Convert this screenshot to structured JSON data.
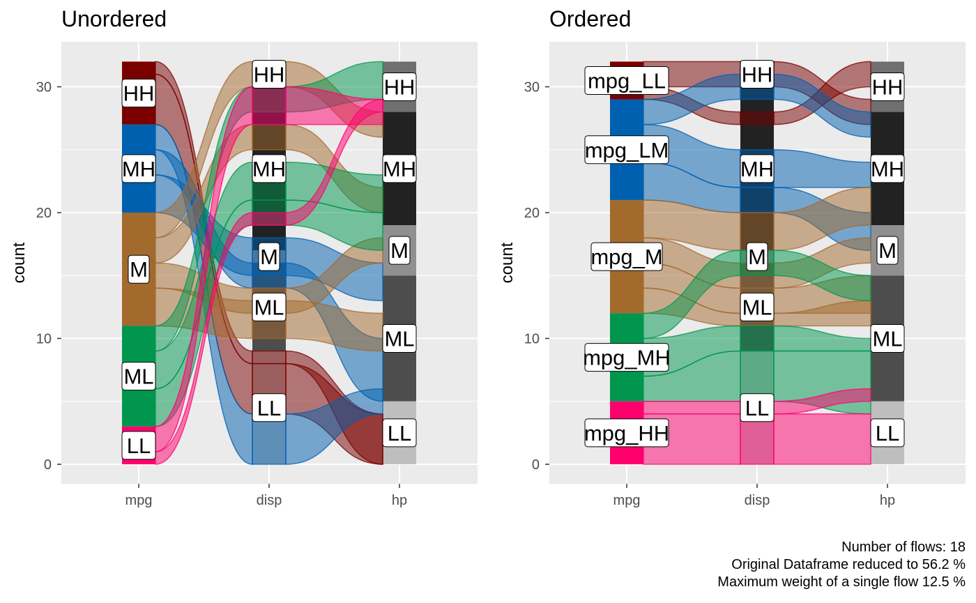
{
  "caption": {
    "flows": "Number of flows: 18",
    "reduced": "Original Dataframe reduced to 56.2 %",
    "max_weight": "Maximum weight of a single flow 12.5 %"
  },
  "colors": {
    "panel_bg": "#EBEBEB",
    "grid": "#FFFFFF",
    "HH": "#7A0000",
    "LM": "#0060B0",
    "M": "#A36A2E",
    "MH": "#00964E",
    "LL": "#FF006E",
    "grey_HH": "#707070",
    "grey_MH": "#222222",
    "grey_M": "#909090",
    "grey_ML": "#4D4D4D",
    "grey_LL": "#BEBEBE"
  },
  "chart_data": [
    {
      "type": "alluvial",
      "title": "Unordered",
      "ylabel": "count",
      "xlabel": "",
      "ylim": [
        0,
        32
      ],
      "y_ticks": [
        0,
        10,
        20,
        30
      ],
      "x": [
        "mpg",
        "disp",
        "hp"
      ],
      "stratum_labels": [
        "HH",
        "MH",
        "M",
        "ML",
        "LL",
        "HH",
        "MH",
        "M",
        "ML",
        "LL",
        "HH",
        "MH",
        "M",
        "ML",
        "LL"
      ]
    },
    {
      "type": "alluvial",
      "title": "Ordered",
      "ylabel": "count",
      "xlabel": "",
      "ylim": [
        0,
        32
      ],
      "y_ticks": [
        0,
        10,
        20,
        30
      ],
      "x": [
        "mpg",
        "disp",
        "hp"
      ],
      "stratum_labels": [
        "mpg_LL",
        "mpg_LM",
        "mpg_M",
        "mpg_MH",
        "mpg_HH",
        "HH",
        "MH",
        "M",
        "ML",
        "LL",
        "HH",
        "MH",
        "M",
        "ML",
        "LL"
      ]
    }
  ]
}
